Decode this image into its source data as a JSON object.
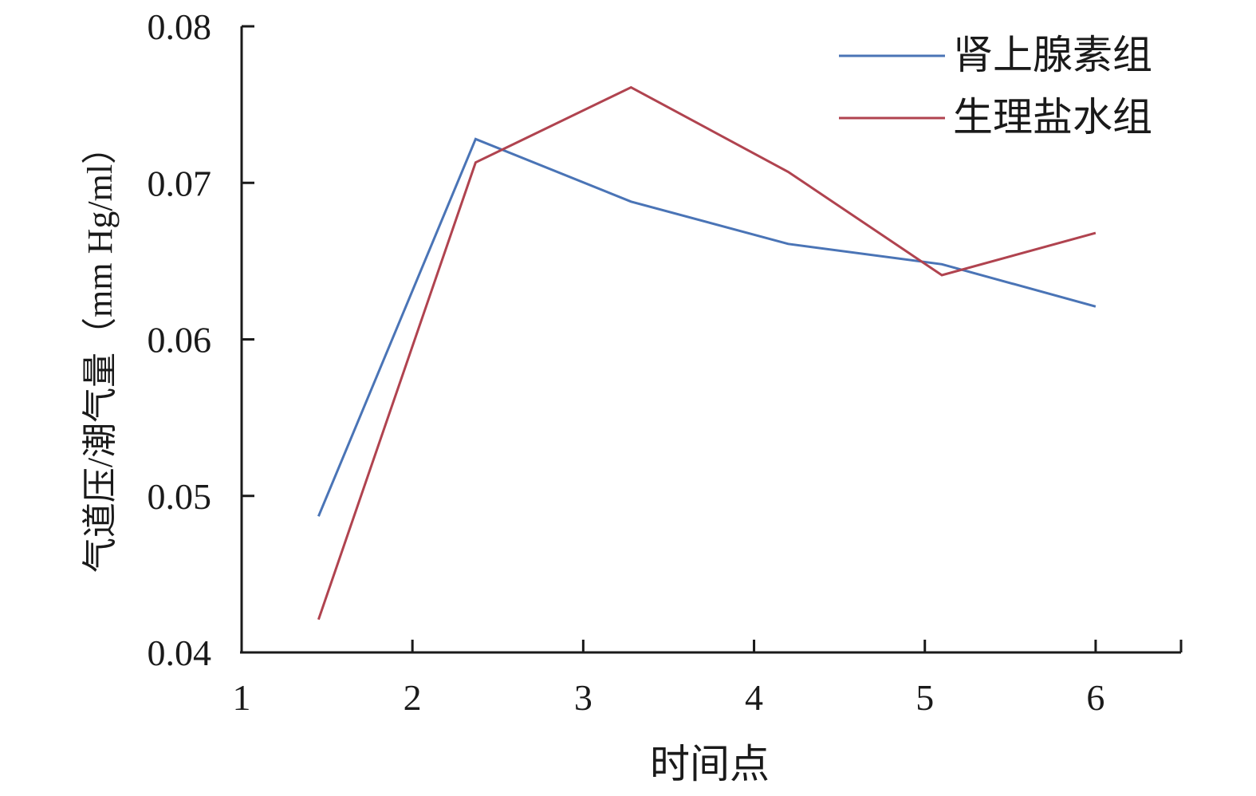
{
  "chart_data": {
    "type": "line",
    "title": "",
    "xlabel": "时间点",
    "ylabel": "气道压/潮气量（mm Hg/ml）",
    "xlim": [
      1,
      6.5
    ],
    "ylim": [
      0.04,
      0.08
    ],
    "x_ticks": [
      "1",
      "2",
      "3",
      "4",
      "5",
      "6"
    ],
    "y_ticks": [
      "0.04",
      "0.05",
      "0.06",
      "0.07",
      "0.08"
    ],
    "legend_position": "top-right",
    "grid": false,
    "series": [
      {
        "name": "肾上腺素组",
        "color": "#4a74b6",
        "x": [
          1.45,
          2.37,
          3.28,
          4.2,
          5.1,
          6.0
        ],
        "y": [
          0.0487,
          0.0728,
          0.0688,
          0.0661,
          0.0648,
          0.0621
        ]
      },
      {
        "name": "生理盐水组",
        "color": "#b0434f",
        "x": [
          1.45,
          2.37,
          3.28,
          4.2,
          5.1,
          6.0
        ],
        "y": [
          0.0421,
          0.0713,
          0.0761,
          0.0707,
          0.0641,
          0.0668
        ]
      }
    ]
  }
}
